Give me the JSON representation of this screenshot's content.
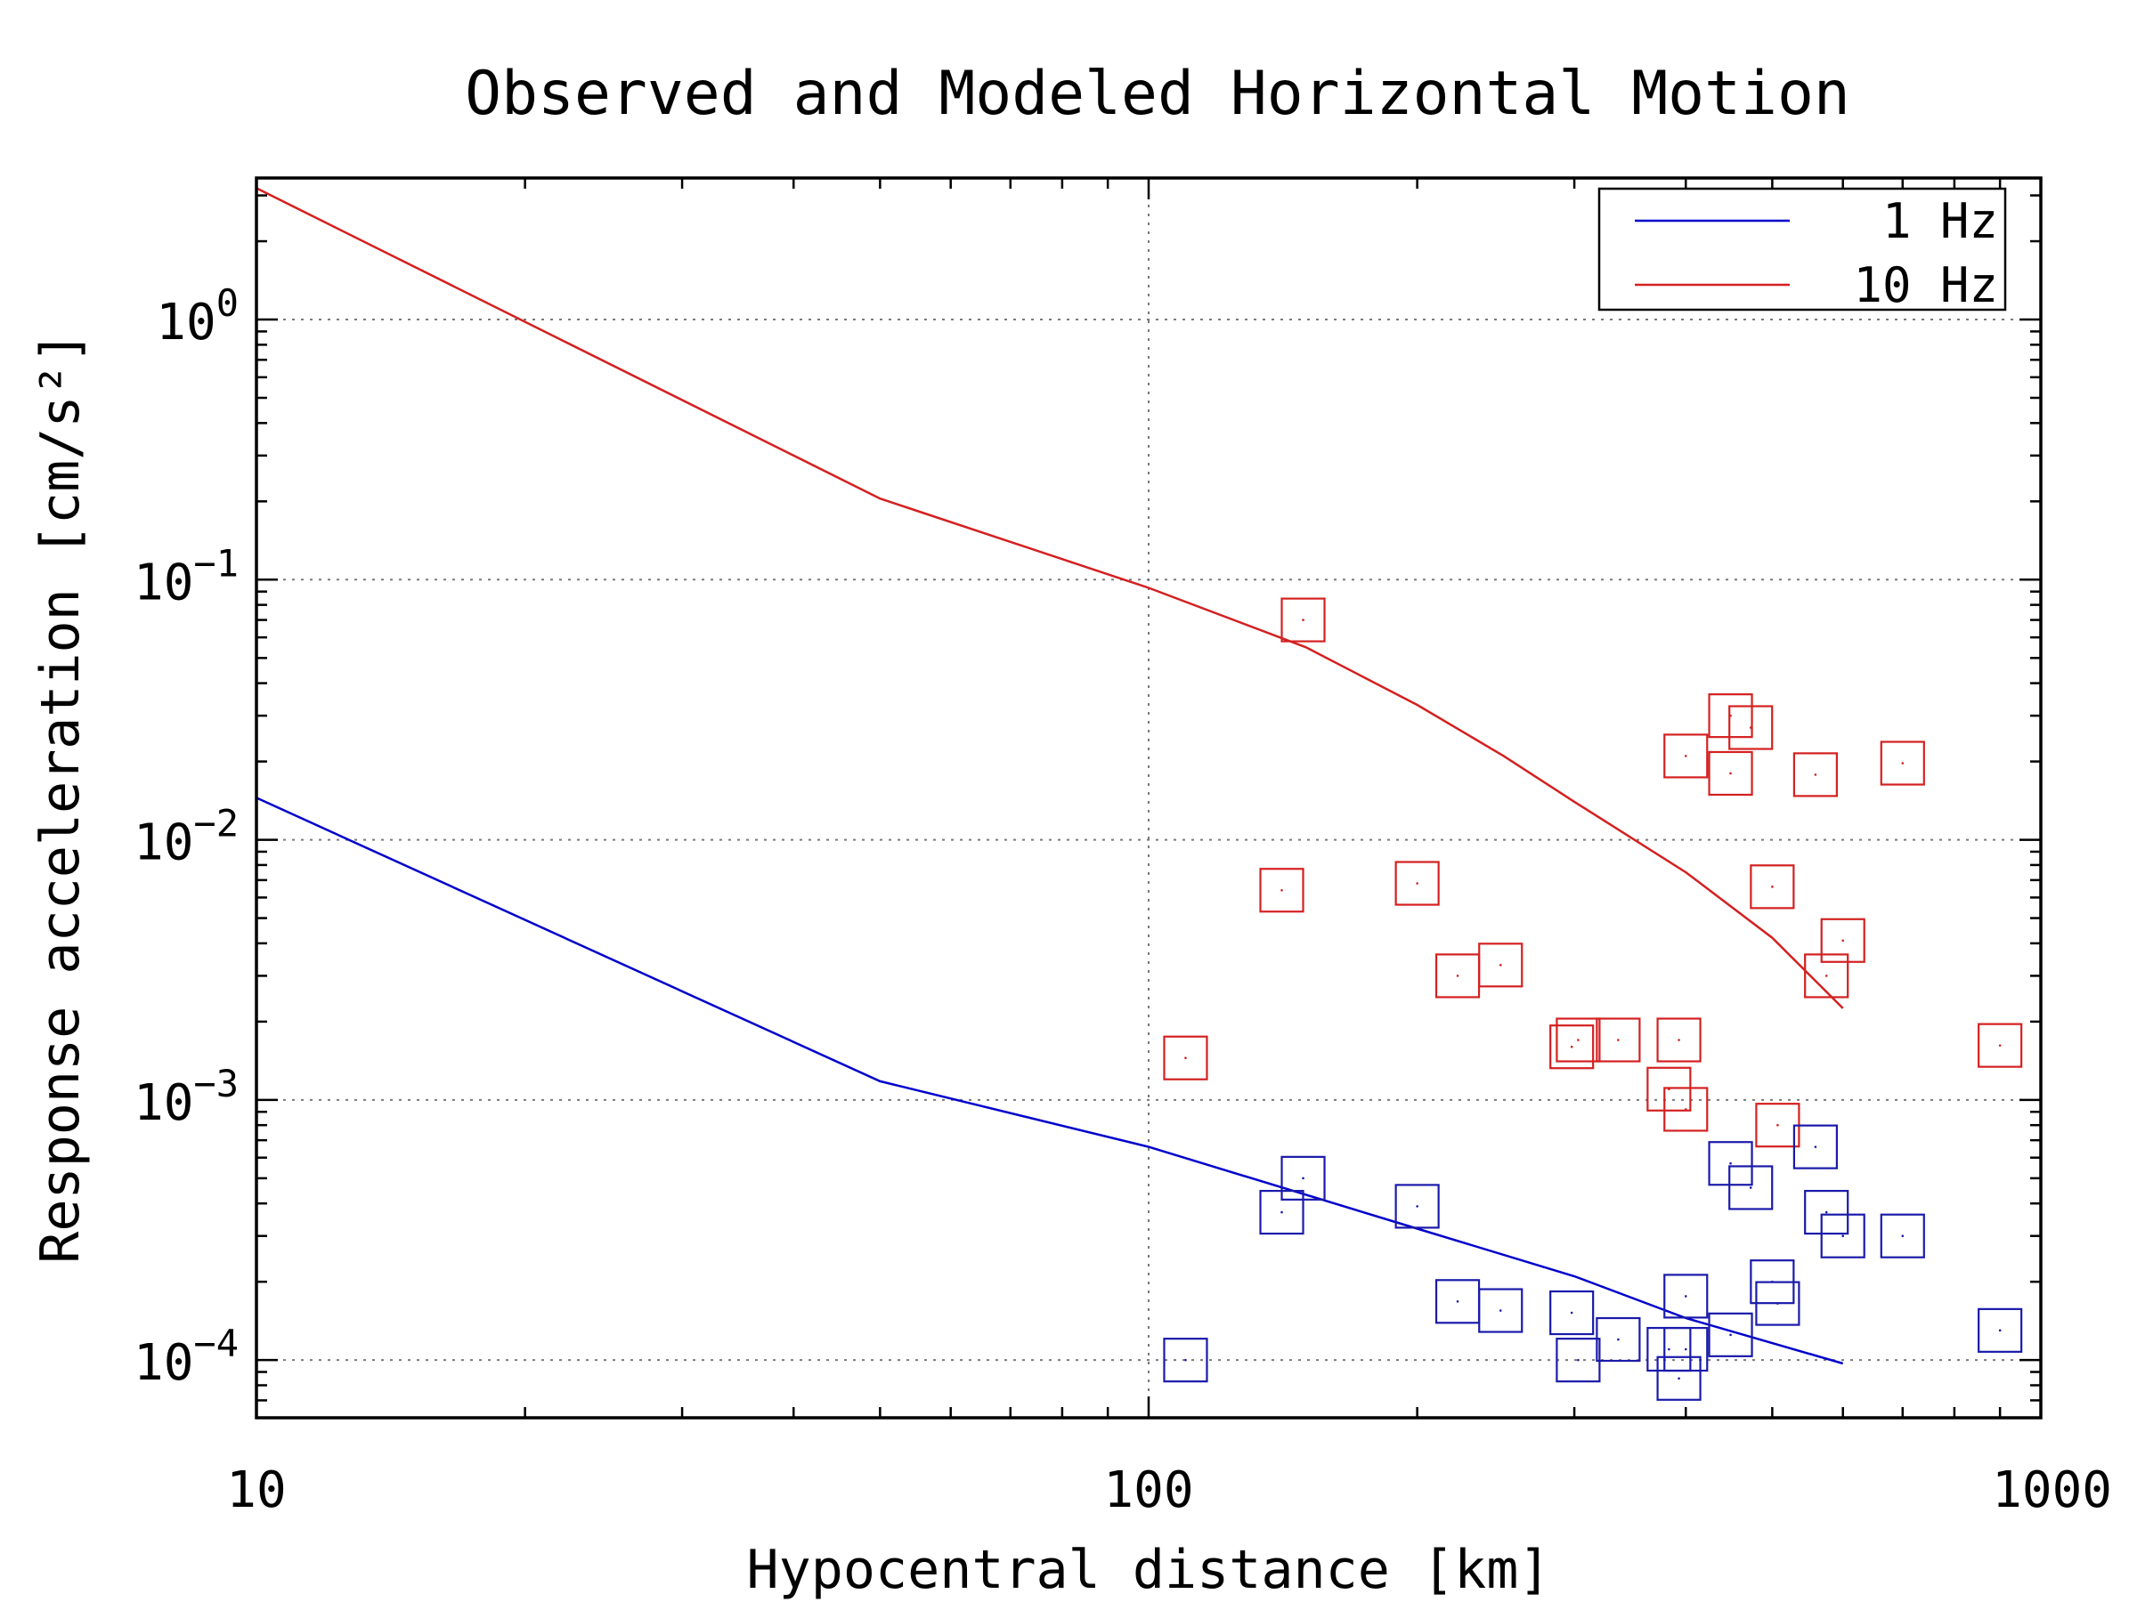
{
  "chart_data": {
    "type": "scatter",
    "title": "Observed and Modeled Horizontal Motion",
    "xlabel": "Hypocentral distance [km]",
    "ylabel": "Response acceleration [cm/s²]",
    "x_scale": "log",
    "y_scale": "log",
    "xlim": [
      10,
      1000
    ],
    "ylim": [
      6e-05,
      3.5
    ],
    "x_ticks": [
      {
        "value": 10,
        "label": "10"
      },
      {
        "value": 100,
        "label": "100"
      },
      {
        "value": 1000,
        "label": "1000"
      }
    ],
    "y_ticks": [
      {
        "value": 0.0001,
        "base": "10",
        "exp": "−4"
      },
      {
        "value": 0.001,
        "base": "10",
        "exp": "−3"
      },
      {
        "value": 0.01,
        "base": "10",
        "exp": "−2"
      },
      {
        "value": 0.1,
        "base": "10",
        "exp": "−1"
      },
      {
        "value": 1,
        "base": "10",
        "exp": "0"
      }
    ],
    "grid": true,
    "legend_position": "top-right",
    "series": [
      {
        "name": "1 Hz",
        "kind": "line",
        "color": "#0000cc",
        "points": [
          [
            10,
            0.0145
          ],
          [
            50,
            0.00118
          ],
          [
            100,
            0.00066
          ],
          [
            200,
            0.00032
          ],
          [
            300,
            0.00021
          ],
          [
            400,
            0.000145
          ],
          [
            600,
            9.7e-05
          ]
        ]
      },
      {
        "name": "10 Hz",
        "kind": "line",
        "color": "#d42020",
        "points": [
          [
            10,
            3.2
          ],
          [
            50,
            0.205
          ],
          [
            100,
            0.093
          ],
          [
            150,
            0.055
          ],
          [
            200,
            0.033
          ],
          [
            250,
            0.021
          ],
          [
            300,
            0.014
          ],
          [
            400,
            0.0075
          ],
          [
            500,
            0.0042
          ],
          [
            600,
            0.00225
          ]
        ]
      },
      {
        "kind": "markers",
        "marker": "square",
        "color": "#d42020",
        "points": [
          [
            149,
            0.07
          ],
          [
            110,
            0.00145
          ],
          [
            141,
            0.0064
          ],
          [
            200,
            0.0068
          ],
          [
            222,
            0.003
          ],
          [
            248,
            0.0033
          ],
          [
            298,
            0.0016
          ],
          [
            303,
            0.0017
          ],
          [
            336,
            0.0017
          ],
          [
            383,
            0.0011
          ],
          [
            393,
            0.0017
          ],
          [
            400,
            0.00092
          ],
          [
            400,
            0.021
          ],
          [
            449,
            0.03
          ],
          [
            449,
            0.018
          ],
          [
            473,
            0.027
          ],
          [
            500,
            0.0066
          ],
          [
            507,
            0.0008
          ],
          [
            559,
            0.0178
          ],
          [
            575,
            0.003
          ],
          [
            600,
            0.0041
          ],
          [
            700,
            0.0197
          ],
          [
            900,
            0.00162
          ]
        ]
      },
      {
        "kind": "markers",
        "marker": "square",
        "color": "#1a1aaa",
        "points": [
          [
            110,
            0.0001
          ],
          [
            141,
            0.00037
          ],
          [
            149,
            0.0005
          ],
          [
            200,
            0.00039
          ],
          [
            222,
            0.000168
          ],
          [
            248,
            0.000155
          ],
          [
            298,
            0.000152
          ],
          [
            303,
            0.0001
          ],
          [
            336,
            0.00012
          ],
          [
            383,
            0.00011
          ],
          [
            393,
            8.5e-05
          ],
          [
            400,
            0.00011
          ],
          [
            400,
            0.000176
          ],
          [
            449,
            0.000125
          ],
          [
            449,
            0.00057
          ],
          [
            473,
            0.00046
          ],
          [
            500,
            0.0002
          ],
          [
            507,
            0.000165
          ],
          [
            559,
            0.00066
          ],
          [
            575,
            0.00037
          ],
          [
            600,
            0.0003
          ],
          [
            700,
            0.0003
          ],
          [
            900,
            0.00013
          ]
        ]
      }
    ]
  }
}
